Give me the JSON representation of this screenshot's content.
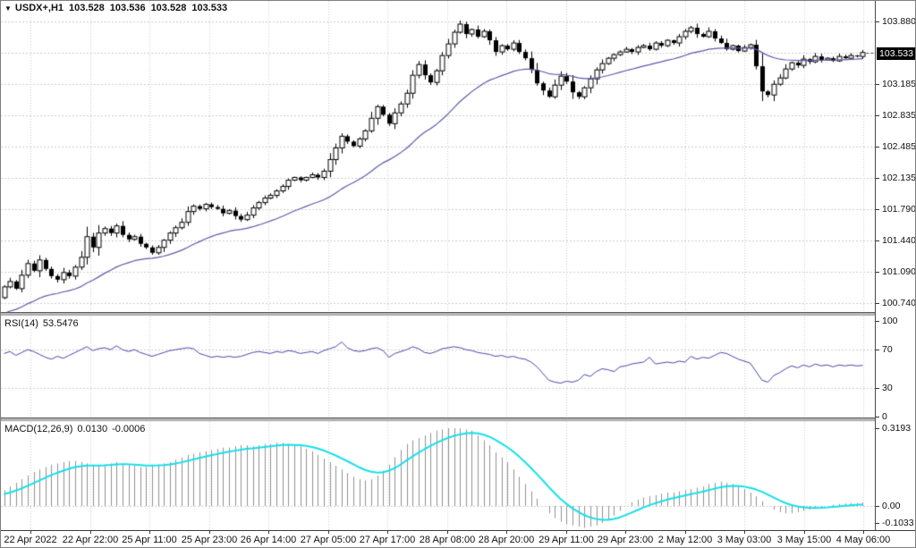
{
  "main_panel": {
    "title": "USDX+,H1",
    "open": "103.528",
    "high": "103.536",
    "low": "103.528",
    "close": "103.533",
    "current_price": "103.533",
    "dropdown_icon": "▼"
  },
  "rsi_panel": {
    "label": "RSI(14)",
    "value": "53.5476"
  },
  "macd_panel": {
    "label": "MACD(12,26,9)",
    "macd_value": "0.0130",
    "signal_value": "-0.0006"
  },
  "right_axis": {
    "main_ticks": [
      "103.880",
      "103.185",
      "102.835",
      "102.485",
      "102.135",
      "101.790",
      "101.440",
      "101.090",
      "100.740"
    ],
    "rsi_ticks": [
      "100",
      "70",
      "30",
      "0"
    ],
    "macd_ticks": [
      "0.3193",
      "0.00",
      "-0.1033"
    ]
  },
  "time_axis": {
    "labels": [
      "22 Apr 2022",
      "22 Apr 22:00",
      "25 Apr 11:00",
      "25 Apr 23:00",
      "26 Apr 14:00",
      "27 Apr 05:00",
      "27 Apr 17:00",
      "28 Apr 08:00",
      "28 Apr 20:00",
      "29 Apr 11:00",
      "29 Apr 23:00",
      "2 May 12:00",
      "3 May 03:00",
      "3 May 15:00",
      "4 May 06:00"
    ]
  },
  "colors": {
    "grid": "#cdcdcd",
    "ma_line": "#5b5bab",
    "rsi_line": "#4646a8",
    "macd_signal": "#15dfe9",
    "histogram": "#909090",
    "bull_fill": "#ffffff",
    "bear_fill": "#000000",
    "candle_outline": "#000000",
    "price_tag_bg": "#000000",
    "price_tag_text": "#ffffff",
    "price_dash": "#444444"
  },
  "chart_data": [
    {
      "type": "candlestick",
      "title": "USDX+,H1",
      "symbol": "USDX+",
      "timeframe": "H1",
      "quote": {
        "open": 103.528,
        "high": 103.536,
        "low": 103.528,
        "close": 103.533
      },
      "ylim": [
        100.64,
        104.11
      ],
      "price_ticks": [
        103.88,
        103.185,
        102.835,
        102.485,
        102.135,
        101.79,
        101.44,
        101.09,
        100.74
      ],
      "current_price": 103.533,
      "ma_period": 26,
      "first_open": 100.8,
      "closes": [
        100.92,
        100.98,
        100.9,
        101.05,
        101.18,
        101.1,
        101.22,
        101.12,
        101.04,
        101.0,
        101.08,
        101.04,
        101.14,
        101.25,
        101.48,
        101.36,
        101.52,
        101.57,
        101.52,
        101.6,
        101.5,
        101.45,
        101.48,
        101.4,
        101.36,
        101.3,
        101.36,
        101.44,
        101.52,
        101.58,
        101.64,
        101.76,
        101.82,
        101.79,
        101.84,
        101.81,
        101.79,
        101.74,
        101.77,
        101.71,
        101.67,
        101.72,
        101.8,
        101.86,
        101.91,
        101.94,
        101.99,
        102.04,
        102.11,
        102.14,
        102.11,
        102.14,
        102.17,
        102.14,
        102.21,
        102.34,
        102.47,
        102.6,
        102.54,
        102.49,
        102.57,
        102.66,
        102.8,
        102.93,
        102.84,
        102.74,
        102.86,
        102.96,
        103.08,
        103.28,
        103.4,
        103.28,
        103.2,
        103.33,
        103.5,
        103.63,
        103.76,
        103.85,
        103.74,
        103.79,
        103.71,
        103.77,
        103.67,
        103.54,
        103.61,
        103.57,
        103.64,
        103.54,
        103.47,
        103.34,
        103.19,
        103.11,
        103.04,
        103.17,
        103.27,
        103.21,
        103.09,
        103.04,
        103.14,
        103.24,
        103.34,
        103.41,
        103.47,
        103.51,
        103.54,
        103.57,
        103.54,
        103.59,
        103.61,
        103.57,
        103.64,
        103.61,
        103.67,
        103.64,
        103.71,
        103.77,
        103.81,
        103.74,
        103.71,
        103.77,
        103.69,
        103.64,
        103.57,
        103.61,
        103.55,
        103.59,
        103.62,
        103.38,
        103.1,
        103.06,
        103.18,
        103.25,
        103.35,
        103.42,
        103.39,
        103.46,
        103.43,
        103.49,
        103.45,
        103.47,
        103.44,
        103.49,
        103.47,
        103.5,
        103.49,
        103.533
      ]
    },
    {
      "type": "line",
      "title": "RSI(14)",
      "period": 14,
      "current": 53.5476,
      "ylim": [
        0,
        100
      ],
      "levels": [
        70,
        30
      ],
      "values": [
        66,
        68,
        64,
        67,
        70,
        68,
        65,
        62,
        60,
        63,
        61,
        64,
        67,
        70,
        73,
        69,
        71,
        72,
        70,
        74,
        70,
        68,
        70,
        67,
        65,
        63,
        65,
        67,
        69,
        70,
        71,
        72,
        71,
        66,
        64,
        62,
        63,
        62,
        63,
        62,
        63,
        65,
        67,
        68,
        67,
        66,
        68,
        67,
        69,
        68,
        66,
        67,
        68,
        66,
        69,
        71,
        73,
        78,
        72,
        69,
        68,
        69,
        71,
        72,
        69,
        62,
        66,
        68,
        70,
        73,
        71,
        67,
        66,
        68,
        71,
        72,
        73,
        72,
        70,
        69,
        67,
        66,
        65,
        63,
        64,
        62,
        63,
        61,
        60,
        57,
        52,
        45,
        38,
        36,
        35,
        37,
        36,
        38,
        44,
        42,
        47,
        50,
        49,
        47,
        52,
        53,
        55,
        56,
        57,
        62,
        55,
        56,
        57,
        56,
        58,
        57,
        63,
        60,
        62,
        61,
        64,
        67,
        66,
        63,
        60,
        58,
        56,
        47,
        38,
        36,
        43,
        46,
        50,
        53,
        51,
        54,
        52,
        55,
        53,
        54,
        52,
        54,
        53,
        54,
        53,
        53.5
      ]
    },
    {
      "type": "macd",
      "title": "MACD(12,26,9)",
      "macd": 0.013,
      "signal": -0.0006,
      "signal_period": 9,
      "ylim": [
        -0.1033,
        0.3193
      ],
      "histogram": [
        0.065,
        0.08,
        0.095,
        0.11,
        0.125,
        0.14,
        0.15,
        0.16,
        0.17,
        0.175,
        0.18,
        0.185,
        0.185,
        0.18,
        0.175,
        0.17,
        0.165,
        0.17,
        0.175,
        0.18,
        0.175,
        0.17,
        0.165,
        0.16,
        0.16,
        0.165,
        0.17,
        0.175,
        0.18,
        0.19,
        0.2,
        0.21,
        0.215,
        0.22,
        0.225,
        0.23,
        0.235,
        0.24,
        0.24,
        0.245,
        0.25,
        0.25,
        0.245,
        0.25,
        0.255,
        0.255,
        0.26,
        0.26,
        0.255,
        0.25,
        0.245,
        0.235,
        0.225,
        0.21,
        0.195,
        0.18,
        0.165,
        0.15,
        0.135,
        0.12,
        0.11,
        0.105,
        0.11,
        0.125,
        0.145,
        0.17,
        0.2,
        0.23,
        0.255,
        0.27,
        0.28,
        0.29,
        0.3,
        0.31,
        0.315,
        0.32,
        0.32,
        0.319,
        0.315,
        0.31,
        0.29,
        0.27,
        0.25,
        0.22,
        0.2,
        0.18,
        0.15,
        0.12,
        0.09,
        0.06,
        0.03,
        0.0,
        -0.03,
        -0.05,
        -0.065,
        -0.075,
        -0.08,
        -0.085,
        -0.09,
        -0.085,
        -0.08,
        -0.07,
        -0.055,
        -0.04,
        -0.02,
        0.0,
        0.015,
        0.025,
        0.035,
        0.04,
        0.045,
        0.05,
        0.055,
        0.055,
        0.06,
        0.065,
        0.07,
        0.075,
        0.08,
        0.09,
        0.095,
        0.1,
        0.095,
        0.09,
        0.08,
        0.07,
        0.055,
        0.04,
        0.02,
        0.0,
        -0.015,
        -0.025,
        -0.03,
        -0.03,
        -0.025,
        -0.02,
        -0.015,
        -0.01,
        -0.005,
        0.0,
        0.005,
        0.008,
        0.01,
        0.012,
        0.012,
        0.013
      ]
    }
  ]
}
